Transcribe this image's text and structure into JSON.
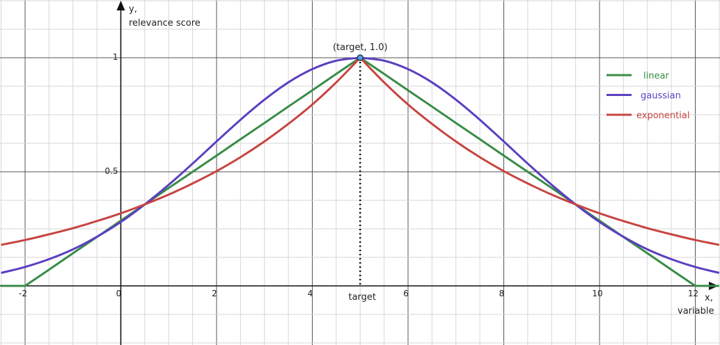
{
  "chart_data": {
    "type": "line",
    "xlim": [
      -2.55,
      12.55
    ],
    "ylim": [
      -0.26,
      1.25
    ],
    "grid": true,
    "legend_position": "top-right",
    "xlabel_lines": [
      "x,",
      "variable"
    ],
    "ylabel_lines": [
      "y,",
      "relevance score"
    ],
    "x_ticks": [
      -2,
      0,
      2,
      4,
      6,
      8,
      10,
      12
    ],
    "y_ticks": [
      0.5,
      1
    ],
    "y_tick_labels": [
      "0.5",
      "1"
    ],
    "target_label": "target",
    "target_x": 5,
    "peak_annotation": "(target, 1.0)",
    "x": [
      -2.5,
      -2,
      -1.5,
      -1,
      -0.5,
      0,
      0.5,
      1,
      1.5,
      2,
      2.5,
      3,
      3.5,
      4,
      4.5,
      5,
      5.5,
      6,
      6.5,
      7,
      7.5,
      8,
      8.5,
      9,
      9.5,
      10,
      10.5,
      11,
      11.5,
      12,
      12.5
    ],
    "series": [
      {
        "name": "linear",
        "color": "#388c46",
        "values": [
          0,
          0,
          0.071,
          0.143,
          0.214,
          0.286,
          0.357,
          0.429,
          0.5,
          0.571,
          0.643,
          0.714,
          0.786,
          0.857,
          0.929,
          1,
          0.929,
          0.857,
          0.786,
          0.714,
          0.643,
          0.571,
          0.5,
          0.429,
          0.357,
          0.286,
          0.214,
          0.143,
          0.071,
          0,
          0
        ]
      },
      {
        "name": "gaussian",
        "color": "#5b3fc0",
        "values": [
          0.057,
          0.083,
          0.117,
          0.16,
          0.215,
          0.28,
          0.357,
          0.443,
          0.536,
          0.633,
          0.728,
          0.816,
          0.892,
          0.95,
          0.987,
          1,
          0.987,
          0.95,
          0.892,
          0.816,
          0.728,
          0.633,
          0.536,
          0.443,
          0.357,
          0.28,
          0.215,
          0.16,
          0.117,
          0.083,
          0.057
        ]
      },
      {
        "name": "exponential",
        "color": "#c74440",
        "values": [
          0.18,
          0.201,
          0.226,
          0.253,
          0.284,
          0.318,
          0.357,
          0.4,
          0.449,
          0.503,
          0.564,
          0.633,
          0.71,
          0.795,
          0.892,
          1,
          0.892,
          0.795,
          0.71,
          0.633,
          0.564,
          0.503,
          0.449,
          0.4,
          0.357,
          0.318,
          0.284,
          0.253,
          0.226,
          0.201,
          0.18
        ]
      }
    ]
  }
}
